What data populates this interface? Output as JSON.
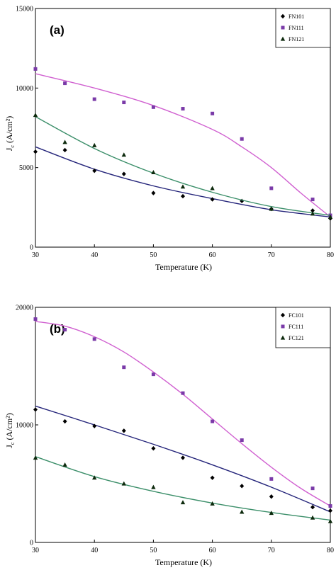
{
  "chart_data": [
    {
      "type": "scatter",
      "panel_label": "(a)",
      "xlabel": "Temperature (K)",
      "ylabel": "J_c (A/cm²)",
      "xlim": [
        30,
        80
      ],
      "ylim": [
        0,
        15000
      ],
      "xticks": [
        30,
        40,
        50,
        60,
        70,
        80
      ],
      "yticks": [
        0,
        5000,
        10000,
        15000
      ],
      "grid": false,
      "legend": "top-right",
      "series": [
        {
          "name": "FN101",
          "marker": "diamond",
          "color": "#000000",
          "line_color": "#24247a",
          "x": [
            30,
            35,
            40,
            45,
            50,
            55,
            60,
            65,
            70,
            77,
            80
          ],
          "y": [
            6000,
            6100,
            4800,
            4600,
            3400,
            3200,
            3000,
            2900,
            2400,
            2300,
            1800
          ],
          "fit": [
            [
              30,
              6300
            ],
            [
              40,
              4900
            ],
            [
              50,
              3850
            ],
            [
              60,
              3050
            ],
            [
              70,
              2350
            ],
            [
              80,
              1900
            ]
          ]
        },
        {
          "name": "FN111",
          "marker": "square",
          "color": "#7a3aa8",
          "line_color": "#d060d0",
          "x": [
            30,
            35,
            40,
            45,
            50,
            55,
            60,
            65,
            70,
            77,
            80
          ],
          "y": [
            11200,
            10300,
            9300,
            9100,
            8800,
            8700,
            8400,
            6800,
            3700,
            3000,
            2000
          ],
          "fit": [
            [
              30,
              10900
            ],
            [
              40,
              10000
            ],
            [
              50,
              8900
            ],
            [
              60,
              7400
            ],
            [
              65,
              6300
            ],
            [
              70,
              5000
            ],
            [
              75,
              3400
            ],
            [
              80,
              1900
            ]
          ]
        },
        {
          "name": "FN121",
          "marker": "triangle",
          "color": "#0d2a0d",
          "line_color": "#3c8f6a",
          "x": [
            30,
            35,
            40,
            45,
            50,
            55,
            60,
            70,
            77,
            80
          ],
          "y": [
            8300,
            6600,
            6400,
            5800,
            4700,
            3800,
            3700,
            2400,
            2100,
            1900
          ],
          "fit": [
            [
              30,
              8200
            ],
            [
              40,
              6200
            ],
            [
              50,
              4650
            ],
            [
              60,
              3450
            ],
            [
              70,
              2550
            ],
            [
              80,
              2000
            ]
          ]
        }
      ]
    },
    {
      "type": "scatter",
      "panel_label": "(b)",
      "xlabel": "Temperature (K)",
      "ylabel": "J_c (A/cm²)",
      "xlim": [
        30,
        80
      ],
      "ylim": [
        0,
        20000
      ],
      "xticks": [
        30,
        40,
        50,
        60,
        70,
        80
      ],
      "yticks": [
        0,
        10000,
        20000
      ],
      "grid": false,
      "legend": "top-right",
      "series": [
        {
          "name": "FC101",
          "marker": "diamond",
          "color": "#000000",
          "line_color": "#24247a",
          "x": [
            30,
            35,
            40,
            45,
            50,
            55,
            60,
            65,
            70,
            77,
            80
          ],
          "y": [
            11300,
            10300,
            9900,
            9500,
            8000,
            7200,
            5500,
            4800,
            3900,
            3000,
            2700
          ],
          "fit": [
            [
              30,
              11600
            ],
            [
              40,
              10000
            ],
            [
              50,
              8350
            ],
            [
              60,
              6600
            ],
            [
              70,
              4700
            ],
            [
              80,
              2600
            ]
          ]
        },
        {
          "name": "FC111",
          "marker": "square",
          "color": "#7a3aa8",
          "line_color": "#d060d0",
          "x": [
            30,
            35,
            40,
            45,
            50,
            55,
            60,
            65,
            70,
            77,
            80
          ],
          "y": [
            19000,
            18100,
            17300,
            14900,
            14300,
            12700,
            10300,
            8700,
            5400,
            4600,
            3100
          ],
          "fit": [
            [
              30,
              18800
            ],
            [
              35,
              18400
            ],
            [
              40,
              17500
            ],
            [
              45,
              16200
            ],
            [
              50,
              14500
            ],
            [
              55,
              12600
            ],
            [
              60,
              10500
            ],
            [
              65,
              8400
            ],
            [
              70,
              6400
            ],
            [
              75,
              4600
            ],
            [
              80,
              3100
            ]
          ]
        },
        {
          "name": "FC121",
          "marker": "triangle",
          "color": "#0d2a0d",
          "line_color": "#3c8f6a",
          "x": [
            30,
            35,
            40,
            45,
            50,
            55,
            60,
            65,
            70,
            77,
            80
          ],
          "y": [
            7200,
            6600,
            5500,
            5000,
            4700,
            3400,
            3300,
            2600,
            2500,
            2100,
            1800
          ],
          "fit": [
            [
              30,
              7300
            ],
            [
              40,
              5600
            ],
            [
              50,
              4350
            ],
            [
              60,
              3350
            ],
            [
              70,
              2550
            ],
            [
              80,
              1900
            ]
          ]
        }
      ]
    }
  ]
}
